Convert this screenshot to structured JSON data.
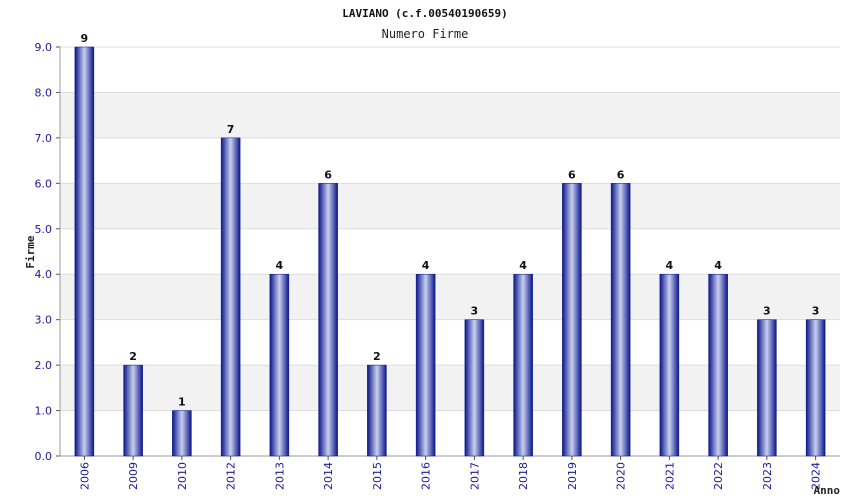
{
  "chart_data": {
    "type": "bar",
    "title": "LAVIANO (c.f.00540190659)",
    "subtitle": "Numero Firme",
    "xlabel": "Anno",
    "ylabel": "Firme",
    "categories": [
      "2006",
      "2009",
      "2010",
      "2012",
      "2013",
      "2014",
      "2015",
      "2016",
      "2017",
      "2018",
      "2019",
      "2020",
      "2021",
      "2022",
      "2023",
      "2024"
    ],
    "values": [
      9,
      2,
      1,
      7,
      4,
      6,
      2,
      4,
      3,
      4,
      6,
      6,
      4,
      4,
      3,
      3
    ],
    "ylim": [
      0,
      9
    ],
    "yticks": [
      "0.0",
      "1.0",
      "2.0",
      "3.0",
      "4.0",
      "5.0",
      "6.0",
      "7.0",
      "8.0",
      "9.0"
    ],
    "grid": true,
    "colors": {
      "bar_dark": "#0a168a",
      "bar_light": "#c9cff0",
      "band": "#f2f2f2",
      "tick_text": "#1a1a9e"
    }
  }
}
